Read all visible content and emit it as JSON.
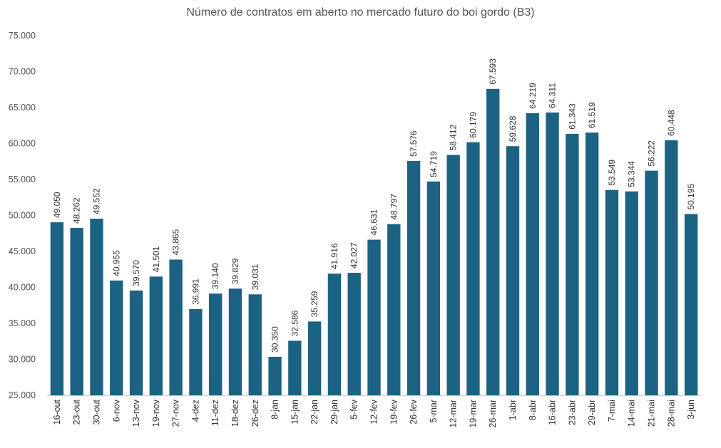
{
  "chart_data": {
    "type": "bar",
    "title": "Número de contratos em aberto no mercado futuro do boi gordo (B3)",
    "xlabel": "",
    "ylabel": "",
    "ylim": [
      25000,
      75000
    ],
    "y_ticks": [
      25000,
      30000,
      35000,
      40000,
      45000,
      50000,
      55000,
      60000,
      65000,
      70000,
      75000
    ],
    "y_tick_labels": [
      "25.000",
      "30.000",
      "35.000",
      "40.000",
      "45.000",
      "50.000",
      "55.000",
      "60.000",
      "65.000",
      "70.000",
      "75.000"
    ],
    "grid": false,
    "bar_color": "#1b6283",
    "categories": [
      "16-out",
      "23-out",
      "30-out",
      "6-nov",
      "13-nov",
      "19-nov",
      "27-nov",
      "4-dez",
      "11-dez",
      "18-dez",
      "26-dez",
      "8-jan",
      "15-jan",
      "22-jan",
      "29-jan",
      "5-fev",
      "12-fev",
      "19-fev",
      "26-fev",
      "5-mar",
      "12-mar",
      "19-mar",
      "26-mar",
      "1-abr",
      "8-abr",
      "16-abr",
      "23-abr",
      "29-abr",
      "7-mai",
      "14-mai",
      "21-mai",
      "28-mai",
      "3-jun"
    ],
    "values": [
      49050,
      48262,
      49552,
      40955,
      39570,
      41501,
      43865,
      36991,
      39140,
      39829,
      39031,
      30350,
      32586,
      35259,
      41916,
      42027,
      46631,
      48797,
      57576,
      54719,
      58412,
      60179,
      67593,
      59628,
      64219,
      64311,
      61343,
      61519,
      53549,
      53344,
      56222,
      60448,
      50195
    ],
    "data_labels": [
      "49.050",
      "48.262",
      "49.552",
      "40.955",
      "39.570",
      "41.501",
      "43.865",
      "36.991",
      "39.140",
      "39.829",
      "39.031",
      "30.350",
      "32.586",
      "35.259",
      "41.916",
      "42.027",
      "46.631",
      "48.797",
      "57.576",
      "54.719",
      "58.412",
      "60.179",
      "67.593",
      "59.628",
      "64.219",
      "64.311",
      "61.343",
      "61.519",
      "53.549",
      "53.344",
      "56.222",
      "60.448",
      "50.195"
    ]
  }
}
